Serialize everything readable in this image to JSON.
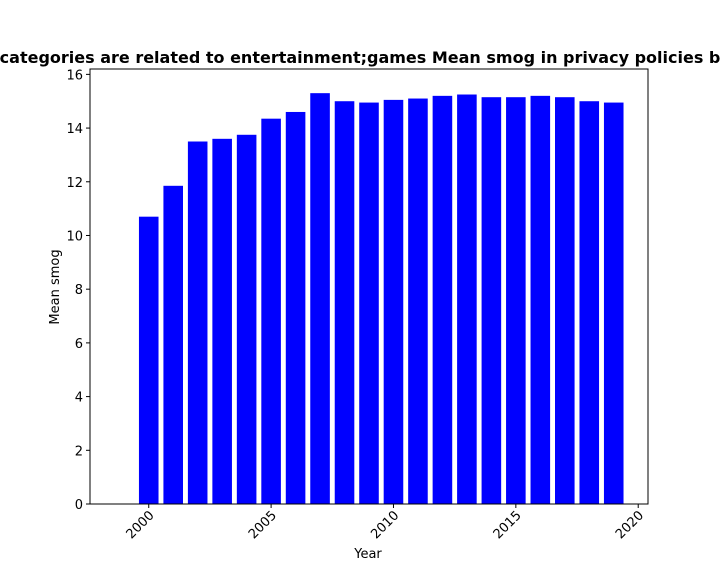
{
  "chart_data": {
    "type": "bar",
    "title": "categories are related to entertainment;games Mean smog in privacy policies b",
    "xlabel": "Year",
    "ylabel": "Mean smog",
    "x": [
      2000,
      2001,
      2002,
      2003,
      2004,
      2005,
      2006,
      2007,
      2008,
      2009,
      2010,
      2011,
      2012,
      2013,
      2014,
      2015,
      2016,
      2017,
      2018,
      2019
    ],
    "values": [
      10.7,
      11.85,
      13.5,
      13.6,
      13.75,
      14.35,
      14.6,
      15.3,
      15.0,
      14.95,
      15.05,
      15.1,
      15.2,
      15.25,
      15.15,
      15.15,
      15.2,
      15.15,
      15.0,
      14.95
    ],
    "xlim": [
      1997.6,
      2020.4
    ],
    "ylim": [
      0,
      16.2
    ],
    "xticks": [
      2000,
      2005,
      2010,
      2015,
      2020
    ],
    "yticks": [
      0,
      2,
      4,
      6,
      8,
      10,
      12,
      14,
      16
    ],
    "bar_color": "#0000ff",
    "grid": false
  }
}
